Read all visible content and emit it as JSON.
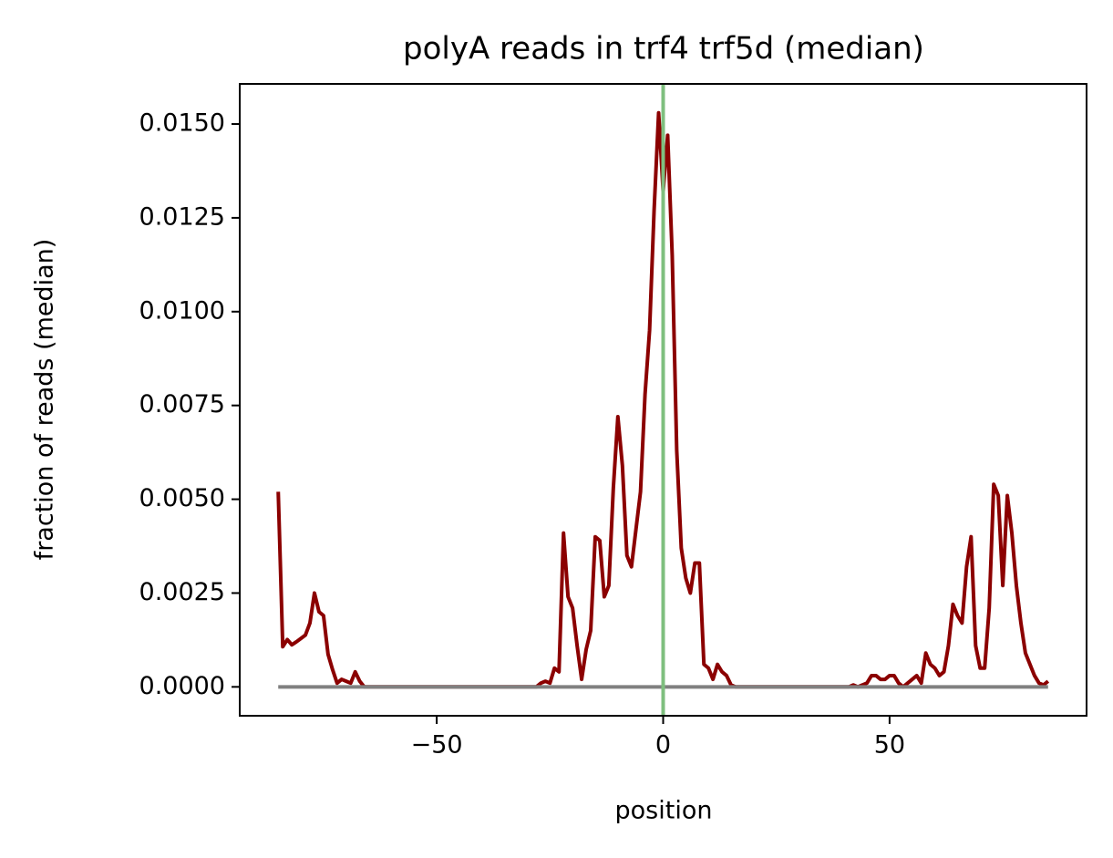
{
  "chart_data": {
    "type": "line",
    "title": "polyA reads in trf4 trf5d (median)",
    "xlabel": "position",
    "ylabel": "fraction of reads (median)",
    "color": "#8b0000",
    "x": [
      -85,
      -84,
      -83,
      -82,
      -81,
      -80,
      -79,
      -78,
      -77,
      -76,
      -75,
      -74,
      -73,
      -72,
      -71,
      -70,
      -69,
      -68,
      -67,
      -66,
      -65,
      -64,
      -63,
      -62,
      -61,
      -60,
      -59,
      -58,
      -57,
      -56,
      -55,
      -54,
      -53,
      -52,
      -51,
      -50,
      -49,
      -48,
      -47,
      -46,
      -45,
      -44,
      -43,
      -42,
      -41,
      -40,
      -39,
      -38,
      -37,
      -36,
      -35,
      -34,
      -33,
      -32,
      -31,
      -30,
      -29,
      -28,
      -27,
      -26,
      -25,
      -24,
      -23,
      -22,
      -21,
      -20,
      -19,
      -18,
      -17,
      -16,
      -15,
      -14,
      -13,
      -12,
      -11,
      -10,
      -9,
      -8,
      -7,
      -6,
      -5,
      -4,
      -3,
      -2,
      -1,
      0,
      1,
      2,
      3,
      4,
      5,
      6,
      7,
      8,
      9,
      10,
      11,
      12,
      13,
      14,
      15,
      16,
      17,
      18,
      19,
      20,
      21,
      22,
      23,
      24,
      25,
      26,
      27,
      28,
      29,
      30,
      31,
      32,
      33,
      34,
      35,
      36,
      37,
      38,
      39,
      40,
      41,
      42,
      43,
      44,
      45,
      46,
      47,
      48,
      49,
      50,
      51,
      52,
      53,
      54,
      55,
      56,
      57,
      58,
      59,
      60,
      61,
      62,
      63,
      64,
      65,
      66,
      67,
      68,
      69,
      70,
      71,
      72,
      73,
      74,
      75,
      76,
      77,
      78,
      79,
      80,
      81,
      82,
      83,
      84,
      85
    ],
    "values": [
      0.0052,
      0.00107,
      0.00126,
      0.00112,
      0.0012,
      0.00129,
      0.00138,
      0.0017,
      0.0025,
      0.002,
      0.0019,
      0.00087,
      0.00046,
      0.0001,
      0.0002,
      0.00015,
      0.0001,
      0.0004,
      0.00015,
      0,
      0,
      0,
      0,
      0,
      0,
      0,
      0,
      0,
      0,
      0,
      0,
      0,
      0,
      0,
      0,
      0,
      0,
      0,
      0,
      0,
      0,
      0,
      0,
      0,
      0,
      0,
      0,
      0,
      0,
      0,
      0,
      0,
      0,
      0,
      0,
      0,
      0,
      0,
      0.0001,
      0.00015,
      0.0001,
      0.0005,
      0.0004,
      0.0041,
      0.0024,
      0.0021,
      0.0011,
      0.0002,
      0.001,
      0.0015,
      0.004,
      0.0039,
      0.0024,
      0.0027,
      0.0053,
      0.0072,
      0.0059,
      0.0035,
      0.0032,
      0.0042,
      0.0052,
      0.0078,
      0.0095,
      0.0127,
      0.0153,
      0.0132,
      0.0147,
      0.0115,
      0.0063,
      0.0037,
      0.0029,
      0.0025,
      0.0033,
      0.0033,
      0.0006,
      0.0005,
      0.0002,
      0.0006,
      0.0004,
      0.0003,
      5e-05,
      0,
      0,
      0,
      0,
      0,
      0,
      0,
      0,
      0,
      0,
      0,
      0,
      0,
      0,
      0,
      0,
      0,
      0,
      0,
      0,
      0,
      0,
      0,
      0,
      0,
      0,
      5e-05,
      0,
      5e-05,
      0.0001,
      0.0003,
      0.0003,
      0.0002,
      0.0002,
      0.0003,
      0.0003,
      0.0001,
      0,
      0.0001,
      0.0002,
      0.0003,
      0.0001,
      0.0009,
      0.0006,
      0.0005,
      0.0003,
      0.0004,
      0.0011,
      0.0022,
      0.0019,
      0.0017,
      0.0032,
      0.004,
      0.0011,
      0.0005,
      0.0005,
      0.0021,
      0.0054,
      0.0051,
      0.0027,
      0.0051,
      0.0041,
      0.0027,
      0.0017,
      0.0009,
      0.0006,
      0.0003,
      0.0001,
      5e-05,
      0.00015
    ],
    "hline": {
      "y": 0,
      "xmin": -85,
      "xmax": 85,
      "color": "#808080"
    },
    "vline": {
      "x": 0,
      "color": "#7fbf7f"
    },
    "xlim": [
      -93.5,
      93.5
    ],
    "ylim": [
      -0.00077,
      0.01607
    ],
    "xticks": [
      {
        "value": -50,
        "label": "−50"
      },
      0,
      50
    ],
    "yticks": [
      {
        "value": 0,
        "label": "0.0000"
      },
      {
        "value": 0.0025,
        "label": "0.0025"
      },
      {
        "value": 0.005,
        "label": "0.0050"
      },
      {
        "value": 0.0075,
        "label": "0.0075"
      },
      {
        "value": 0.01,
        "label": "0.0100"
      },
      {
        "value": 0.0125,
        "label": "0.0125"
      },
      {
        "value": 0.015,
        "label": "0.0150"
      }
    ],
    "grid": false
  }
}
